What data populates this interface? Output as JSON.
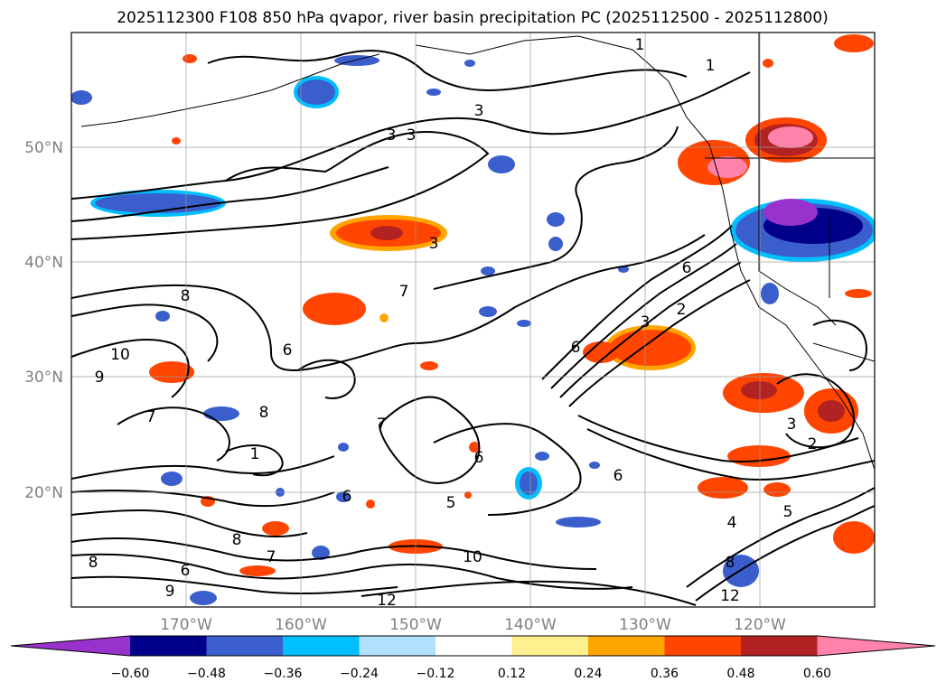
{
  "title": "2025112300 F108 850 hPa qvapor, river basin precipitation PC (2025112500 - 2025112800)",
  "map": {
    "lat_labels": [
      "50°N",
      "40°N",
      "30°N",
      "20°N"
    ],
    "lon_labels": [
      "170°W",
      "160°W",
      "150°W",
      "140°W",
      "130°W",
      "120°W"
    ],
    "grid": true
  },
  "contour_labels": [
    "1",
    "1",
    "3",
    "3",
    "3",
    "3",
    "7",
    "6",
    "6",
    "3",
    "2",
    "8",
    "10",
    "9",
    "7",
    "6",
    "8",
    "1",
    "6",
    "7",
    "6",
    "6",
    "5",
    "2",
    "3",
    "5",
    "4",
    "8",
    "9",
    "12",
    "10",
    "12",
    "8",
    "6",
    "8",
    "7"
  ],
  "colorbar": {
    "ticks": [
      "−0.60",
      "−0.48",
      "−0.36",
      "−0.24",
      "−0.12",
      "0.12",
      "0.24",
      "0.36",
      "0.48",
      "0.60"
    ],
    "colors": [
      "#9932cc",
      "#00008b",
      "#3a5fcd",
      "#00bfff",
      "#b0e2ff",
      "#ffffff",
      "#fff08f",
      "#ffa500",
      "#ff4500",
      "#b22222",
      "#ff82ab"
    ]
  }
}
